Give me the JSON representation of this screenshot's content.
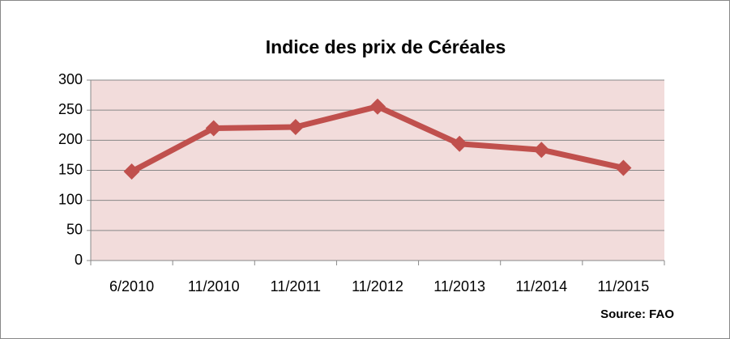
{
  "chart_data": {
    "type": "line",
    "title": "Indice des prix de Céréales",
    "source": "Source: FAO",
    "categories": [
      "6/2010",
      "11/2010",
      "11/2011",
      "11/2012",
      "11/2013",
      "11/2014",
      "11/2015"
    ],
    "values": [
      148,
      220,
      222,
      256,
      194,
      184,
      154
    ],
    "color": "#c0504d",
    "ylim": [
      0,
      300
    ],
    "yticks": [
      0,
      50,
      100,
      150,
      200,
      250,
      300
    ],
    "grid": true
  }
}
